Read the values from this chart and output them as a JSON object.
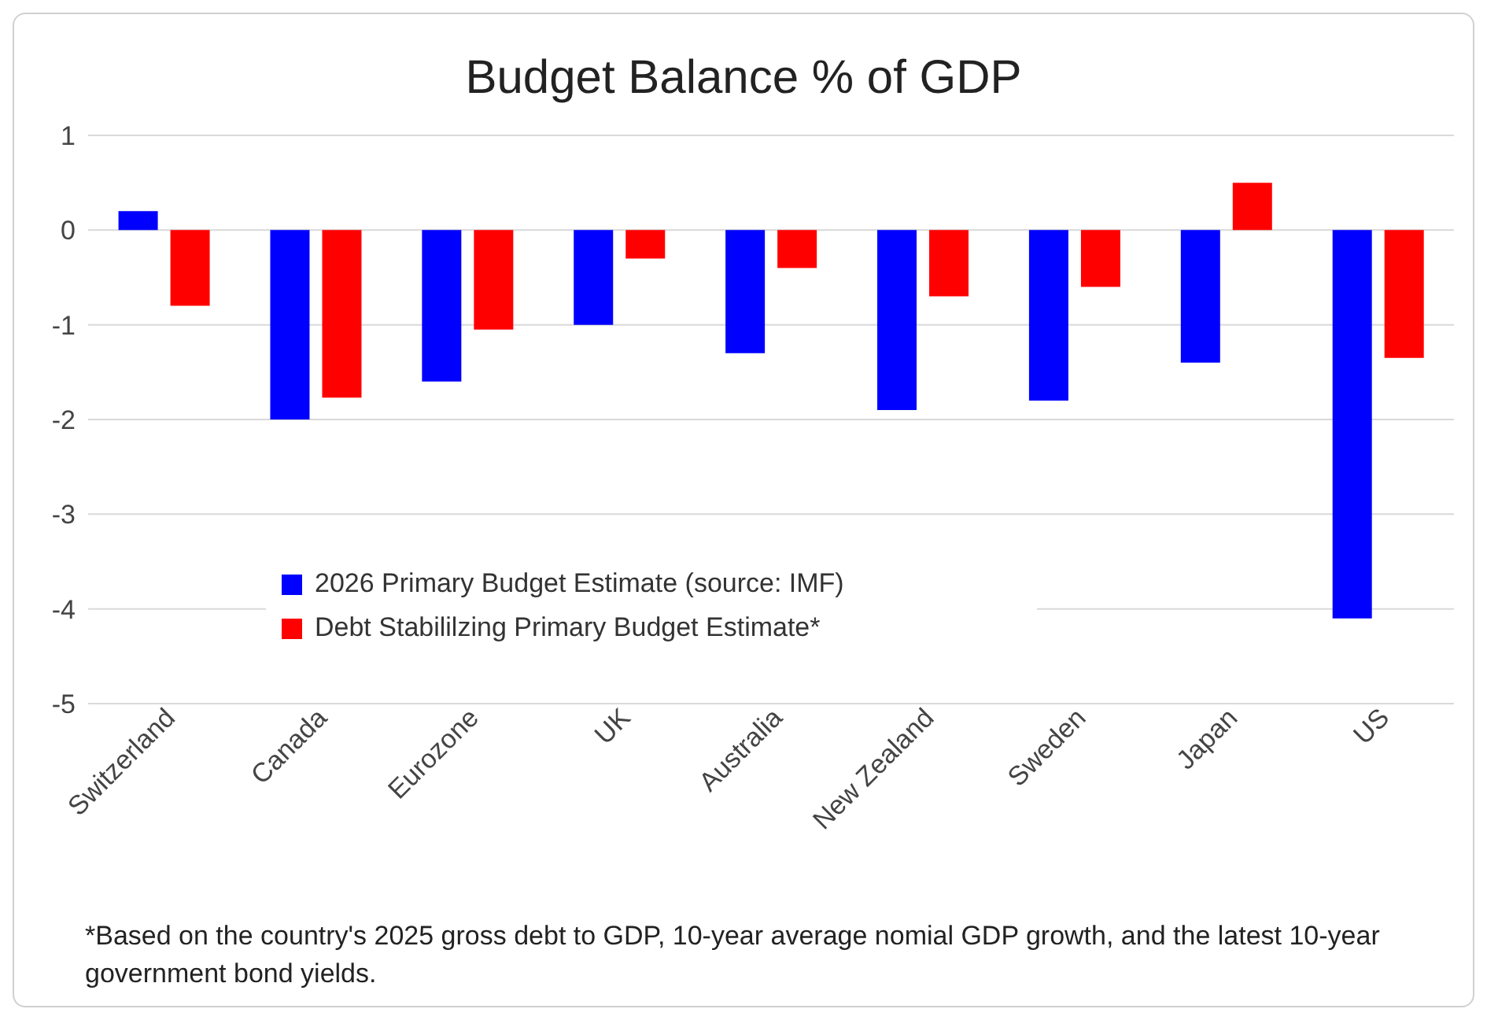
{
  "chart_data": {
    "type": "bar",
    "title": "Budget Balance % of GDP",
    "categories": [
      "Switzerland",
      "Canada",
      "Eurozone",
      "UK",
      "Australia",
      "New Zealand",
      "Sweden",
      "Japan",
      "US"
    ],
    "series": [
      {
        "name": "2026 Primary Budget Estimate (source: IMF)",
        "color": "#0000ff",
        "values": [
          0.2,
          -2.0,
          -1.6,
          -1.0,
          -1.3,
          -1.9,
          -1.8,
          -1.4,
          -4.1
        ]
      },
      {
        "name": "Debt Stabililzing Primary Budget Estimate*",
        "color": "#ff0000",
        "values": [
          -0.8,
          -1.77,
          -1.05,
          -0.3,
          -0.4,
          -0.7,
          -0.6,
          0.5,
          -1.35
        ]
      }
    ],
    "ylim": [
      -5,
      1
    ],
    "yticks": [
      -5,
      -4,
      -3,
      -2,
      -1,
      0,
      1
    ],
    "grid": "y",
    "legend": "bottom",
    "annotations": [
      "*Based on the country's 2025 gross debt to GDP, 10-year average nomial GDP growth, and the latest 10-year government bond yields."
    ]
  }
}
